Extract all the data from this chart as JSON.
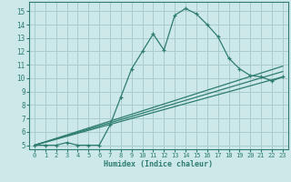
{
  "xlabel": "Humidex (Indice chaleur)",
  "xlim": [
    -0.5,
    23.5
  ],
  "ylim": [
    4.7,
    15.7
  ],
  "yticks": [
    5,
    6,
    7,
    8,
    9,
    10,
    11,
    12,
    13,
    14,
    15
  ],
  "xticks": [
    0,
    1,
    2,
    3,
    4,
    5,
    6,
    7,
    8,
    9,
    10,
    11,
    12,
    13,
    14,
    15,
    16,
    17,
    18,
    19,
    20,
    21,
    22,
    23
  ],
  "bg_color": "#cce8e8",
  "grid_color": "#aacccc",
  "line_color": "#2e7d6e",
  "line1_x": [
    0,
    1,
    2,
    3,
    4,
    5,
    6,
    7,
    8,
    9,
    10,
    11,
    12,
    13,
    14,
    15,
    16,
    17,
    18,
    19,
    20,
    21,
    22,
    23
  ],
  "line1_y": [
    5.0,
    5.0,
    5.0,
    5.2,
    5.0,
    5.0,
    5.0,
    6.5,
    8.6,
    10.7,
    12.0,
    13.3,
    12.1,
    14.7,
    15.2,
    14.8,
    14.0,
    13.1,
    11.5,
    10.7,
    10.2,
    10.1,
    9.8,
    10.1
  ],
  "line2_x": [
    0,
    23
  ],
  "line2_y": [
    5.0,
    10.1
  ],
  "line3_x": [
    0,
    23
  ],
  "line3_y": [
    5.0,
    10.5
  ],
  "line4_x": [
    0,
    23
  ],
  "line4_y": [
    5.0,
    10.9
  ]
}
